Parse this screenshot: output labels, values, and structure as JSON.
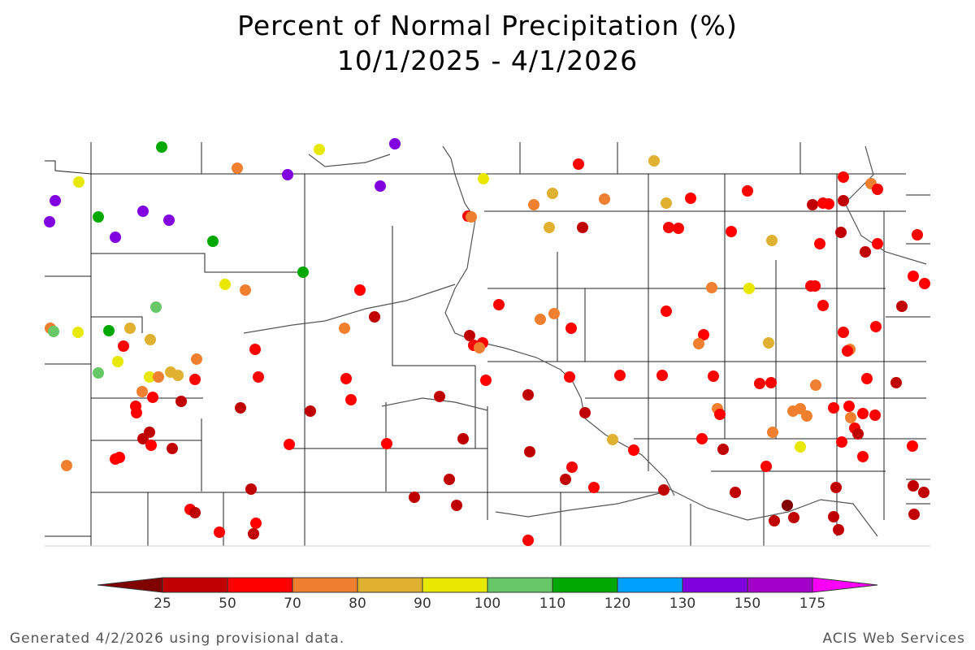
{
  "title": "Percent of Normal Precipitation (%)",
  "subtitle": "10/1/2025 - 4/1/2026",
  "footer_left": "Generated 4/2/2026 using provisional data.",
  "footer_right": "ACIS Web Services",
  "legend": {
    "ticks": [
      "25",
      "50",
      "70",
      "80",
      "90",
      "100",
      "110",
      "120",
      "130",
      "150",
      "175"
    ],
    "bins": [
      {
        "range": "<25",
        "color": "#800000"
      },
      {
        "range": "25-50",
        "color": "#c00000"
      },
      {
        "range": "50-70",
        "color": "#ff0000"
      },
      {
        "range": "70-80",
        "color": "#f08030"
      },
      {
        "range": "80-90",
        "color": "#e0b030"
      },
      {
        "range": "90-100",
        "color": "#e8e800"
      },
      {
        "range": "100-110",
        "color": "#66c866"
      },
      {
        "range": "110-120",
        "color": "#00a800"
      },
      {
        "range": "120-130",
        "color": "#00a0ff"
      },
      {
        "range": "130-150",
        "color": "#8000e0"
      },
      {
        "range": "150-175",
        "color": "#a000c8"
      },
      {
        "range": ">175",
        "color": "#ff00ff"
      }
    ]
  }
}
